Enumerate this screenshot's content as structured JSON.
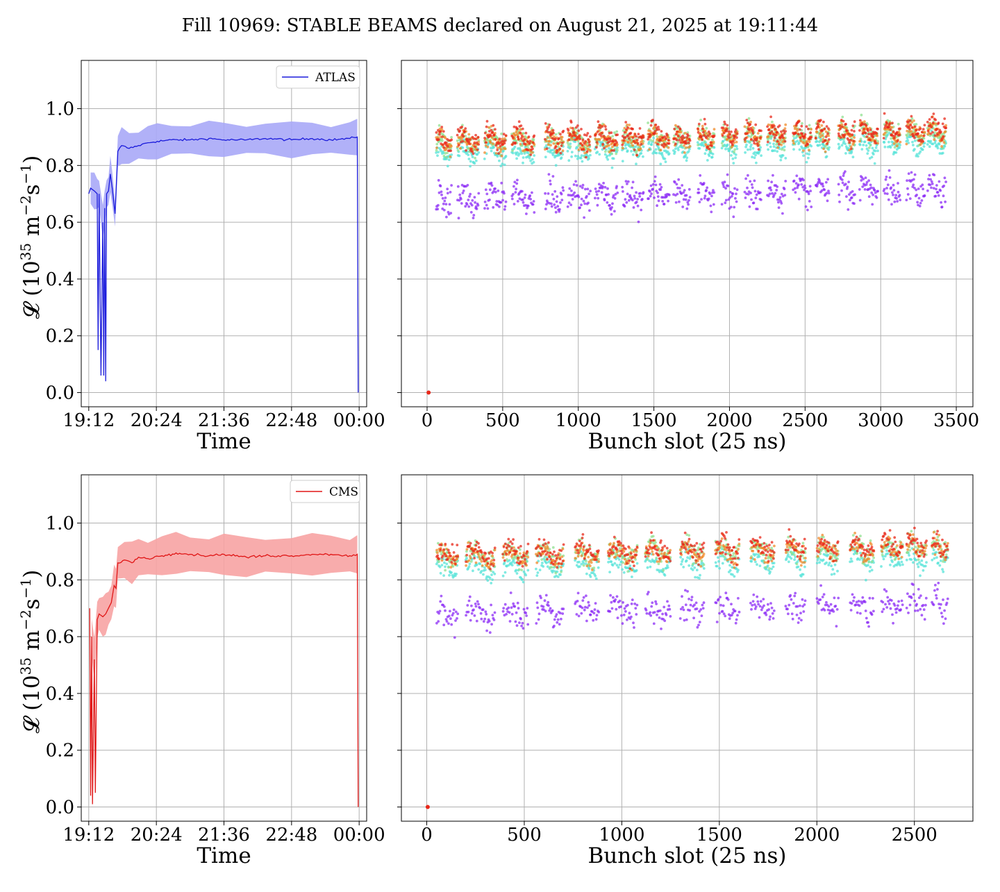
{
  "figure": {
    "title": "Fill 10969: STABLE BEAMS declared on August 21, 2025 at 19:11:44"
  },
  "colors": {
    "atlas_line": "#1a1adb",
    "atlas_band": "#a9a9f7",
    "cms_line": "#e01515",
    "cms_band": "#f7a3a3",
    "bunch_violet": "#8c2cf5",
    "bunch_cyan": "#55e3d8",
    "bunch_green": "#8fe08f",
    "bunch_orange": "#f08a2a",
    "bunch_red": "#e8281a",
    "grid": "#b0b0b0"
  },
  "chart_data": [
    {
      "type": "line",
      "panel": "atlas-time",
      "title": "",
      "xlabel": "Time",
      "ylabel": "𝓛 (10^35 m^-2 s^-1)",
      "xlim": [
        "19:04",
        "00:08"
      ],
      "ylim": [
        -0.05,
        1.17
      ],
      "xticks": [
        "19:12",
        "20:24",
        "21:36",
        "22:48",
        "00:00"
      ],
      "yticks": [
        "0.0",
        "0.2",
        "0.4",
        "0.6",
        "0.8",
        "1.0"
      ],
      "grid": true,
      "legend_position": "top-right",
      "series": [
        {
          "name": "ATLAS",
          "band_width": 0.055,
          "points": [
            [
              "19:12",
              0.7
            ],
            [
              "19:14",
              0.72
            ],
            [
              "19:18",
              0.71
            ],
            [
              "19:21",
              0.7
            ],
            [
              "19:22",
              0.15
            ],
            [
              "19:23",
              0.7
            ],
            [
              "19:25",
              0.06
            ],
            [
              "19:27",
              0.6
            ],
            [
              "19:28",
              0.06
            ],
            [
              "19:29",
              0.65
            ],
            [
              "19:30",
              0.04
            ],
            [
              "19:31",
              0.7
            ],
            [
              "19:33",
              0.71
            ],
            [
              "19:35",
              0.77
            ],
            [
              "19:37",
              0.72
            ],
            [
              "19:40",
              0.63
            ],
            [
              "19:43",
              0.85
            ],
            [
              "19:47",
              0.87
            ],
            [
              "19:55",
              0.86
            ],
            [
              "20:05",
              0.87
            ],
            [
              "20:15",
              0.88
            ],
            [
              "20:25",
              0.885
            ],
            [
              "20:40",
              0.89
            ],
            [
              "21:00",
              0.89
            ],
            [
              "21:20",
              0.895
            ],
            [
              "21:36",
              0.89
            ],
            [
              "22:00",
              0.89
            ],
            [
              "22:20",
              0.895
            ],
            [
              "22:48",
              0.89
            ],
            [
              "23:10",
              0.895
            ],
            [
              "23:30",
              0.89
            ],
            [
              "23:50",
              0.895
            ],
            [
              "23:58",
              0.9
            ],
            [
              "23:59",
              0.0
            ]
          ]
        }
      ]
    },
    {
      "type": "scatter",
      "panel": "atlas-bunch",
      "title": "",
      "xlabel": "Bunch slot (25 ns)",
      "ylabel": "",
      "xlim": [
        -170,
        3610
      ],
      "ylim": [
        -0.05,
        1.17
      ],
      "xticks": [
        "0",
        "500",
        "1000",
        "1500",
        "2000",
        "2500",
        "3000",
        "3500"
      ],
      "grid": true,
      "lumi_baseline": 0.68,
      "trains": [
        [
          60,
          160
        ],
        [
          200,
          340
        ],
        [
          380,
          520
        ],
        [
          560,
          710
        ],
        [
          780,
          900
        ],
        [
          930,
          1080
        ],
        [
          1110,
          1260
        ],
        [
          1290,
          1430
        ],
        [
          1460,
          1600
        ],
        [
          1630,
          1740
        ],
        [
          1790,
          1900
        ],
        [
          1950,
          2050
        ],
        [
          2100,
          2210
        ],
        [
          2250,
          2370
        ],
        [
          2420,
          2540
        ],
        [
          2570,
          2660
        ],
        [
          2720,
          2830
        ],
        [
          2860,
          2980
        ],
        [
          3020,
          3130
        ],
        [
          3170,
          3290
        ],
        [
          3310,
          3430
        ]
      ],
      "isolated_points": [
        [
          10,
          0.0
        ]
      ]
    },
    {
      "type": "line",
      "panel": "cms-time",
      "title": "",
      "xlabel": "Time",
      "ylabel": "𝓛 (10^35 m^-2 s^-1)",
      "xlim": [
        "19:04",
        "00:08"
      ],
      "ylim": [
        -0.05,
        1.17
      ],
      "xticks": [
        "19:12",
        "20:24",
        "21:36",
        "22:48",
        "00:00"
      ],
      "yticks": [
        "0.0",
        "0.2",
        "0.4",
        "0.6",
        "0.8",
        "1.0"
      ],
      "grid": true,
      "legend_position": "top-right",
      "series": [
        {
          "name": "CMS",
          "band_width": 0.065,
          "points": [
            [
              "19:13",
              0.7
            ],
            [
              "19:14",
              0.04
            ],
            [
              "19:15",
              0.6
            ],
            [
              "19:16",
              0.01
            ],
            [
              "19:18",
              0.52
            ],
            [
              "19:19",
              0.05
            ],
            [
              "19:21",
              0.66
            ],
            [
              "19:23",
              0.68
            ],
            [
              "19:27",
              0.67
            ],
            [
              "19:30",
              0.68
            ],
            [
              "19:33",
              0.7
            ],
            [
              "19:36",
              0.72
            ],
            [
              "19:39",
              0.78
            ],
            [
              "19:41",
              0.77
            ],
            [
              "19:43",
              0.86
            ],
            [
              "19:50",
              0.87
            ],
            [
              "19:58",
              0.86
            ],
            [
              "20:05",
              0.88
            ],
            [
              "20:15",
              0.875
            ],
            [
              "20:30",
              0.885
            ],
            [
              "20:45",
              0.895
            ],
            [
              "21:00",
              0.89
            ],
            [
              "21:20",
              0.885
            ],
            [
              "21:36",
              0.89
            ],
            [
              "22:00",
              0.88
            ],
            [
              "22:20",
              0.885
            ],
            [
              "22:48",
              0.885
            ],
            [
              "23:10",
              0.89
            ],
            [
              "23:30",
              0.89
            ],
            [
              "23:50",
              0.885
            ],
            [
              "23:58",
              0.89
            ],
            [
              "23:59",
              0.0
            ]
          ]
        }
      ]
    },
    {
      "type": "scatter",
      "panel": "cms-bunch",
      "title": "",
      "xlabel": "Bunch slot (25 ns)",
      "ylabel": "",
      "xlim": [
        -130,
        2800
      ],
      "ylim": [
        -0.05,
        1.17
      ],
      "xticks": [
        "0",
        "500",
        "1000",
        "1500",
        "2000",
        "2500"
      ],
      "grid": true,
      "lumi_baseline": 0.68,
      "trains": [
        [
          50,
          160
        ],
        [
          200,
          350
        ],
        [
          390,
          520
        ],
        [
          560,
          700
        ],
        [
          760,
          880
        ],
        [
          930,
          1080
        ],
        [
          1120,
          1250
        ],
        [
          1300,
          1420
        ],
        [
          1480,
          1600
        ],
        [
          1660,
          1780
        ],
        [
          1840,
          1940
        ],
        [
          2000,
          2110
        ],
        [
          2170,
          2290
        ],
        [
          2330,
          2440
        ],
        [
          2460,
          2560
        ],
        [
          2590,
          2670
        ]
      ],
      "isolated_points": [
        [
          5,
          0.0
        ]
      ]
    }
  ]
}
